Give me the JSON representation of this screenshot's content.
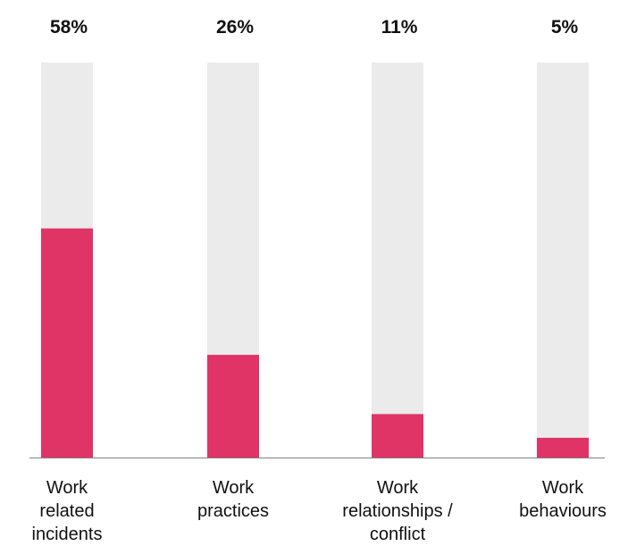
{
  "chart_data": {
    "type": "bar",
    "title": "",
    "xlabel": "",
    "ylabel": "",
    "ylim": [
      0,
      100
    ],
    "categories": [
      [
        "Work",
        "related",
        "incidents"
      ],
      [
        "Work",
        "practices"
      ],
      [
        "Work",
        "relationships /",
        "conflict"
      ],
      [
        "Work",
        "behaviours"
      ]
    ],
    "values": [
      58,
      26,
      11,
      5
    ],
    "value_labels": [
      "58%",
      "26%",
      "11%",
      "5%"
    ],
    "colors": {
      "bar": "#e03366",
      "track": "#ebebeb",
      "axis": "#808080"
    },
    "grid": false,
    "legend": "none"
  }
}
